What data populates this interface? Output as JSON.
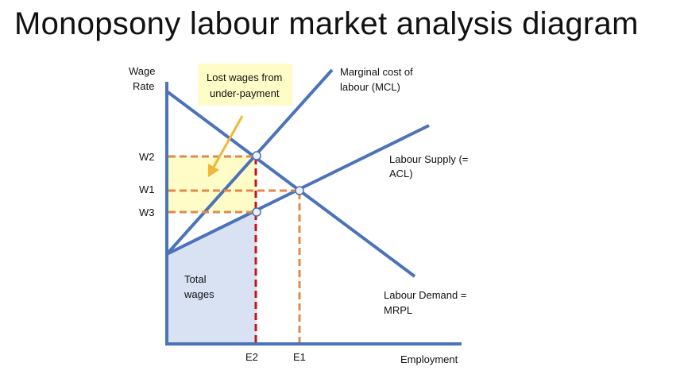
{
  "title": "Monopsony labour market analysis diagram",
  "axes": {
    "y_label": [
      "Wage",
      "Rate"
    ],
    "x_label": "Employment"
  },
  "ticks": {
    "w2": "W2",
    "w1": "W1",
    "w3": "W3",
    "e2": "E2",
    "e1": "E1"
  },
  "curves": {
    "mcl": [
      "Marginal cost of",
      "labour (MCL)"
    ],
    "supply": [
      "Labour Supply (=",
      "ACL)"
    ],
    "demand": [
      "Labour Demand =",
      "MRPL"
    ]
  },
  "callout": [
    "Lost wages from",
    "under-payment"
  ],
  "area_label": [
    "Total",
    "wages"
  ],
  "colors": {
    "curve": "#4a73b8",
    "dash_orange": "#e08a4a",
    "dash_red": "#c0141b",
    "lost_fill": "#fffcc8",
    "wages_fill": "#d8e2f3",
    "arrow": "#f0b73a",
    "point_fill": "#eef2f8"
  }
}
